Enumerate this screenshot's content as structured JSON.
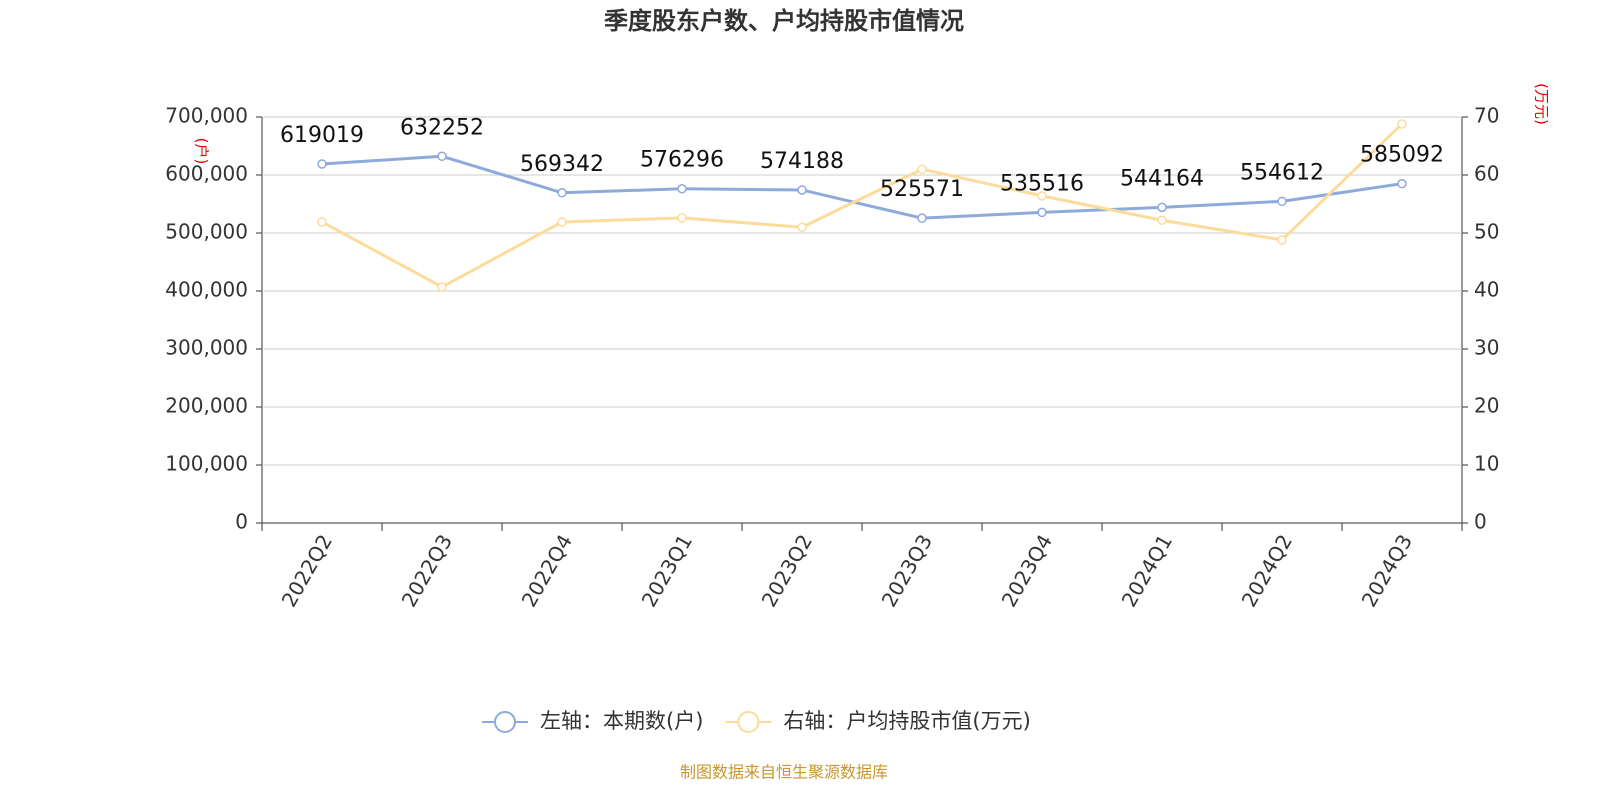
{
  "chart_data": {
    "type": "line",
    "title": "季度股东户数、户均持股市值情况",
    "y_label": "(户)",
    "y2_label": "(万元)",
    "source": "制图数据来自恒生聚源数据库",
    "categories": [
      "2022Q2",
      "2022Q3",
      "2022Q4",
      "2023Q1",
      "2023Q2",
      "2023Q3",
      "2023Q4",
      "2024Q1",
      "2024Q2",
      "2024Q3"
    ],
    "series": [
      {
        "name": "左轴：本期数(户)",
        "color": "#8eaadb",
        "values": [
          619019,
          632252,
          569342,
          576296,
          574188,
          525571,
          535516,
          544164,
          554612,
          585092
        ],
        "show_labels": true
      },
      {
        "name": "右轴：户均持股市值(万元)",
        "color": "#fddc9b",
        "axis": "y2",
        "values": [
          51.9,
          40.7,
          51.9,
          52.6,
          51.0,
          61.0,
          56.4,
          52.2,
          48.8,
          68.8
        ]
      }
    ],
    "ylim": [
      0,
      700000
    ],
    "yticks": [
      0,
      {
        "value": 100000,
        "label": "100,000"
      },
      {
        "value": 200000,
        "label": "200,000"
      },
      {
        "value": 300000,
        "label": "300,000"
      },
      {
        "value": 400000,
        "label": "400,000"
      },
      {
        "value": 500000,
        "label": "500,000"
      },
      {
        "value": 600000,
        "label": "600,000"
      },
      {
        "value": 700000,
        "label": "700,000"
      }
    ],
    "y2lim": [
      0,
      70
    ],
    "y2ticks": [
      0,
      10,
      20,
      30,
      40,
      50,
      60,
      70
    ],
    "grid": true,
    "legend": "bottom"
  }
}
